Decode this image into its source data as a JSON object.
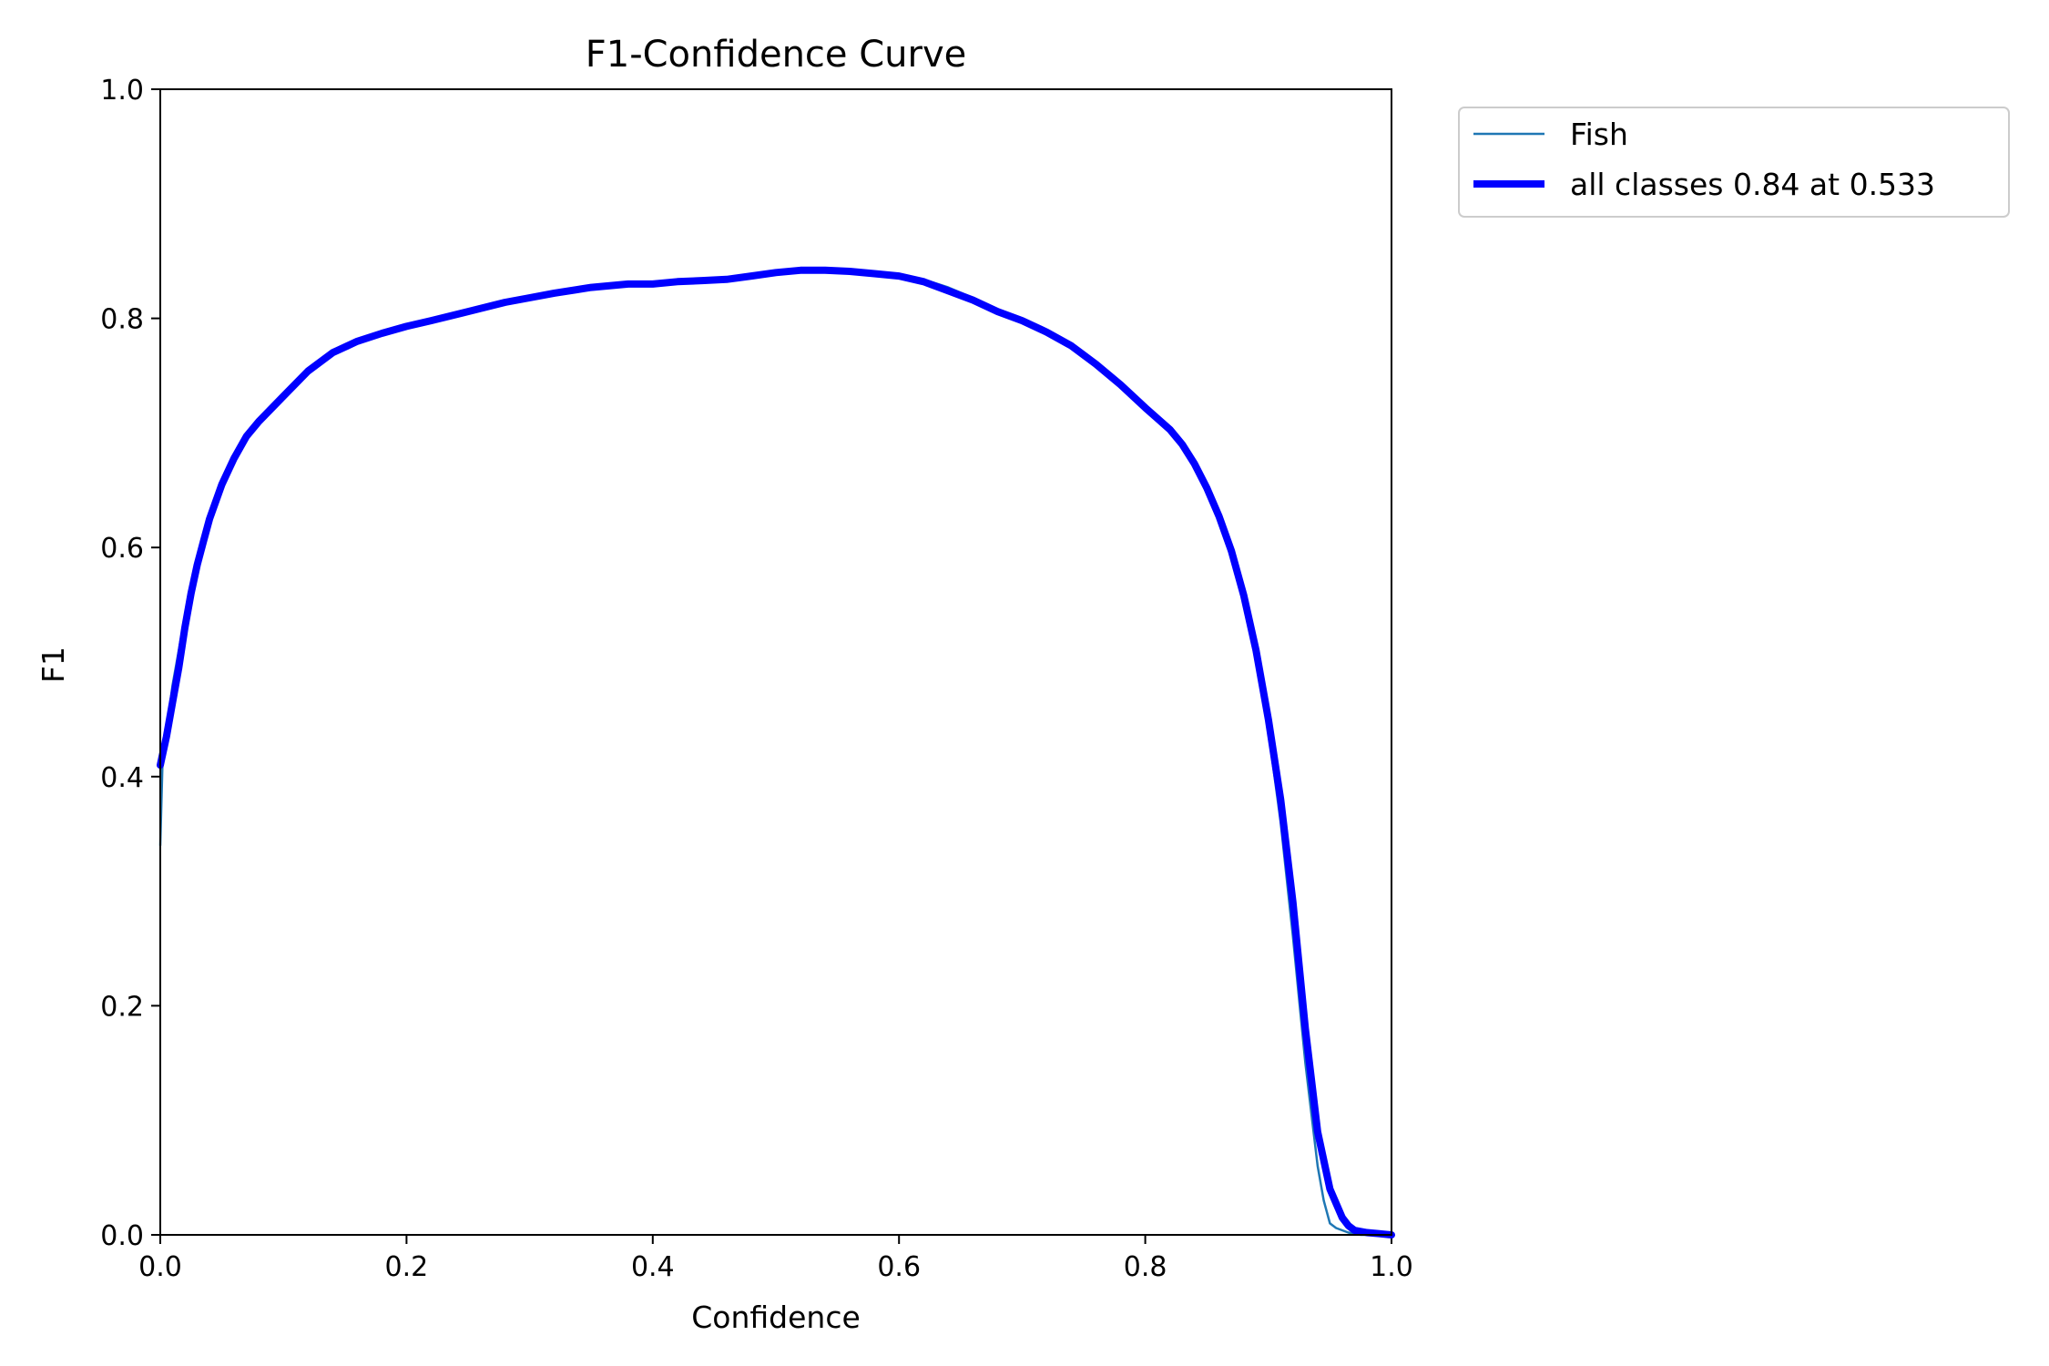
{
  "chart_data": {
    "type": "line",
    "title": "F1-Confidence Curve",
    "xlabel": "Confidence",
    "ylabel": "F1",
    "xlim": [
      0,
      1
    ],
    "ylim": [
      0,
      1
    ],
    "xticks": [
      "0.0",
      "0.2",
      "0.4",
      "0.6",
      "0.8",
      "1.0"
    ],
    "yticks": [
      "0.0",
      "0.2",
      "0.4",
      "0.6",
      "0.8",
      "1.0"
    ],
    "grid": false,
    "legend": "outside-top-right",
    "series": [
      {
        "name": "Fish",
        "color": "#1f77b4",
        "x": [
          0.0,
          0.002,
          0.005,
          0.01,
          0.015,
          0.02,
          0.025,
          0.03,
          0.035,
          0.04,
          0.05,
          0.06,
          0.07,
          0.08,
          0.1,
          0.12,
          0.14,
          0.16,
          0.18,
          0.2,
          0.22,
          0.25,
          0.28,
          0.3,
          0.32,
          0.35,
          0.38,
          0.4,
          0.42,
          0.44,
          0.46,
          0.48,
          0.5,
          0.52,
          0.54,
          0.56,
          0.58,
          0.6,
          0.62,
          0.64,
          0.66,
          0.68,
          0.7,
          0.72,
          0.74,
          0.76,
          0.78,
          0.8,
          0.82,
          0.83,
          0.84,
          0.85,
          0.86,
          0.87,
          0.88,
          0.89,
          0.9,
          0.91,
          0.92,
          0.93,
          0.94,
          0.945,
          0.95,
          0.955,
          0.96,
          0.965,
          0.97,
          0.975,
          0.98,
          0.99,
          1.0
        ],
        "y": [
          0.34,
          0.42,
          0.44,
          0.48,
          0.51,
          0.54,
          0.56,
          0.58,
          0.6,
          0.62,
          0.65,
          0.675,
          0.695,
          0.71,
          0.732,
          0.754,
          0.77,
          0.78,
          0.787,
          0.793,
          0.798,
          0.806,
          0.814,
          0.818,
          0.822,
          0.827,
          0.83,
          0.83,
          0.832,
          0.833,
          0.834,
          0.837,
          0.84,
          0.842,
          0.843,
          0.842,
          0.84,
          0.838,
          0.834,
          0.827,
          0.818,
          0.808,
          0.8,
          0.79,
          0.778,
          0.762,
          0.742,
          0.722,
          0.705,
          0.69,
          0.675,
          0.655,
          0.63,
          0.6,
          0.56,
          0.51,
          0.44,
          0.36,
          0.26,
          0.15,
          0.06,
          0.03,
          0.01,
          0.006,
          0.004,
          0.002,
          0.001,
          0.0,
          0.0,
          0.0,
          0.0
        ]
      },
      {
        "name": "all classes 0.84 at 0.533",
        "color": "#0000ff",
        "x": [
          0.0,
          0.002,
          0.005,
          0.01,
          0.015,
          0.02,
          0.025,
          0.03,
          0.035,
          0.04,
          0.05,
          0.06,
          0.07,
          0.08,
          0.1,
          0.12,
          0.14,
          0.16,
          0.18,
          0.2,
          0.22,
          0.25,
          0.28,
          0.3,
          0.32,
          0.35,
          0.38,
          0.4,
          0.42,
          0.44,
          0.46,
          0.48,
          0.5,
          0.52,
          0.533,
          0.54,
          0.56,
          0.58,
          0.6,
          0.62,
          0.64,
          0.66,
          0.68,
          0.7,
          0.72,
          0.74,
          0.76,
          0.78,
          0.8,
          0.82,
          0.83,
          0.84,
          0.85,
          0.86,
          0.87,
          0.88,
          0.89,
          0.9,
          0.91,
          0.92,
          0.93,
          0.94,
          0.95,
          0.96,
          0.965,
          0.97,
          0.98,
          0.99,
          1.0
        ],
        "y": [
          0.41,
          0.42,
          0.435,
          0.465,
          0.495,
          0.53,
          0.56,
          0.585,
          0.605,
          0.625,
          0.655,
          0.678,
          0.697,
          0.71,
          0.732,
          0.754,
          0.77,
          0.78,
          0.787,
          0.793,
          0.798,
          0.806,
          0.814,
          0.818,
          0.822,
          0.827,
          0.83,
          0.83,
          0.832,
          0.833,
          0.834,
          0.837,
          0.84,
          0.842,
          0.842,
          0.842,
          0.841,
          0.839,
          0.837,
          0.832,
          0.824,
          0.816,
          0.806,
          0.798,
          0.788,
          0.776,
          0.76,
          0.742,
          0.722,
          0.703,
          0.69,
          0.673,
          0.652,
          0.627,
          0.597,
          0.558,
          0.51,
          0.45,
          0.38,
          0.29,
          0.18,
          0.09,
          0.04,
          0.015,
          0.008,
          0.004,
          0.002,
          0.001,
          0.0
        ]
      }
    ]
  }
}
